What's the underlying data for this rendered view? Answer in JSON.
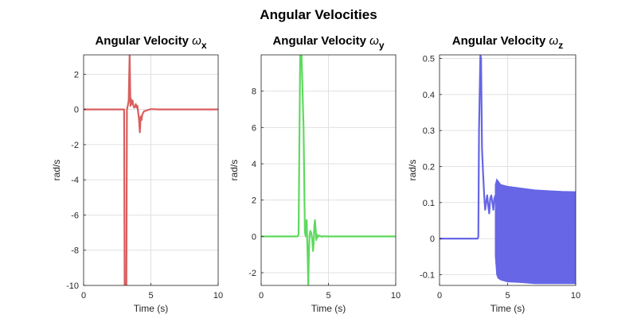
{
  "figure": {
    "title": "Angular Velocities"
  },
  "chart_data": [
    {
      "type": "line",
      "title": "Angular Velocity ",
      "title_symbol": "ω",
      "title_subscript": "x",
      "xlabel": "Time (s)",
      "ylabel": "rad/s",
      "xlim": [
        0,
        10
      ],
      "ylim": [
        -10,
        3.1
      ],
      "xticks": [
        0,
        5,
        10
      ],
      "yticks": [
        -10,
        -8,
        -6,
        -4,
        -2,
        0,
        2
      ],
      "grid": true,
      "color": "#d95f5f",
      "series": [
        {
          "x": [
            0,
            2.9,
            3.0,
            3.01,
            3.05,
            3.12,
            3.18,
            3.22,
            3.28,
            3.35,
            3.42,
            3.48,
            3.52,
            3.58,
            3.64,
            3.7,
            3.76,
            3.82,
            3.88,
            3.94,
            4.0,
            4.06,
            4.12,
            4.18,
            4.24,
            4.3,
            4.36,
            4.42,
            4.5,
            4.6,
            4.75,
            5.0,
            5.5,
            10
          ],
          "y": [
            0,
            0,
            0,
            0,
            -10,
            -10,
            -10,
            0,
            0.2,
            0.5,
            3.1,
            0.2,
            0.6,
            0.3,
            0.5,
            0.2,
            0.1,
            0.15,
            0.3,
            0.1,
            0.2,
            -0.2,
            -0.6,
            -1.3,
            -0.4,
            -0.6,
            -0.3,
            -0.2,
            -0.1,
            -0.08,
            -0.04,
            0.02,
            0,
            0
          ]
        }
      ]
    },
    {
      "type": "line",
      "title": "Angular Velocity ",
      "title_symbol": "ω",
      "title_subscript": "y",
      "xlabel": "Time (s)",
      "ylabel": "rad/s",
      "xlim": [
        0,
        10
      ],
      "ylim": [
        -2.7,
        10
      ],
      "xticks": [
        0,
        5,
        10
      ],
      "yticks": [
        -2,
        0,
        2,
        4,
        6,
        8
      ],
      "grid": true,
      "color": "#5fd95f",
      "series": [
        {
          "x": [
            0,
            2.7,
            2.78,
            2.9,
            3.0,
            3.15,
            3.25,
            3.32,
            3.38,
            3.42,
            3.46,
            3.5,
            3.55,
            3.6,
            3.65,
            3.72,
            3.8,
            3.85,
            3.9,
            3.95,
            4.0,
            4.05,
            4.1,
            4.15,
            4.2,
            4.3,
            4.4,
            4.5,
            4.6,
            4.8,
            5.2,
            10
          ],
          "y": [
            0,
            0,
            0.1,
            10,
            10,
            6,
            0.2,
            0,
            0.9,
            -0.2,
            -1.2,
            -2.7,
            -0.8,
            0.1,
            0.3,
            0.2,
            -0.2,
            -0.8,
            -0.4,
            0.6,
            0.9,
            0.4,
            -0.2,
            0.1,
            -0.05,
            0.05,
            0.02,
            -0.02,
            0.01,
            0,
            0,
            0
          ]
        }
      ]
    },
    {
      "type": "line",
      "title": "Angular Velocity ",
      "title_symbol": "ω",
      "title_subscript": "z",
      "xlabel": "Time (s)",
      "ylabel": "rad/s",
      "xlim": [
        0,
        10
      ],
      "ylim": [
        -0.13,
        0.51
      ],
      "xticks": [
        0,
        5,
        10
      ],
      "yticks": [
        -0.1,
        0,
        0.1,
        0.2,
        0.3,
        0.4,
        0.5
      ],
      "grid": true,
      "color": "#6666e6",
      "series": [
        {
          "x": [
            0,
            2.8,
            2.85,
            2.9,
            3.0,
            3.05,
            3.12,
            3.2,
            3.28,
            3.35,
            3.42,
            3.5,
            3.58,
            3.65,
            3.72,
            3.8,
            3.88,
            3.95,
            4.02,
            4.1
          ],
          "y": [
            0,
            0,
            0.005,
            0.3,
            0.51,
            0.5,
            0.25,
            0.18,
            0.12,
            0.08,
            0.1,
            0.12,
            0.09,
            0.07,
            0.11,
            0.12,
            0.1,
            0.08,
            0.11,
            0.12
          ]
        }
      ],
      "band": {
        "x": [
          4.1,
          4.2,
          4.3,
          4.5,
          5,
          6,
          7,
          8,
          9,
          10
        ],
        "upper": [
          0.15,
          0.165,
          0.16,
          0.15,
          0.145,
          0.14,
          0.135,
          0.133,
          0.131,
          0.13
        ],
        "lower": [
          -0.05,
          -0.1,
          -0.11,
          -0.115,
          -0.12,
          -0.122,
          -0.125,
          -0.125,
          -0.125,
          -0.125
        ]
      }
    }
  ]
}
